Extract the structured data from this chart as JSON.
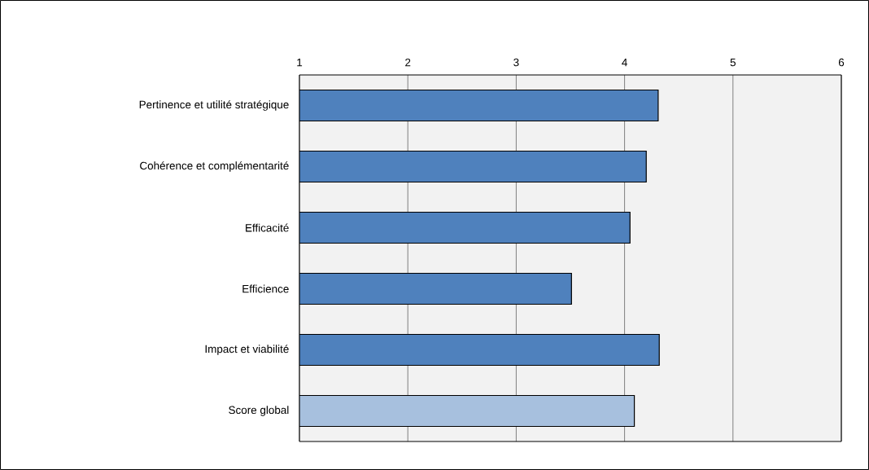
{
  "chart_data": {
    "type": "bar",
    "orientation": "horizontal",
    "categories": [
      "Pertinence et utilité stratégique",
      "Cohérence et complémentarité",
      "Efficacité",
      "Efficience",
      "Impact et viabilité",
      "Score global"
    ],
    "series": [
      {
        "color": "#4f81bd",
        "values": [
          4.31,
          4.2,
          4.05,
          3.51,
          4.32,
          null
        ]
      },
      {
        "color": "#a7c0de",
        "values": [
          null,
          null,
          null,
          null,
          null,
          4.09
        ]
      }
    ],
    "xlim": [
      1,
      6
    ],
    "xticks": [
      1,
      2,
      3,
      4,
      5,
      6
    ],
    "grid": "x"
  }
}
